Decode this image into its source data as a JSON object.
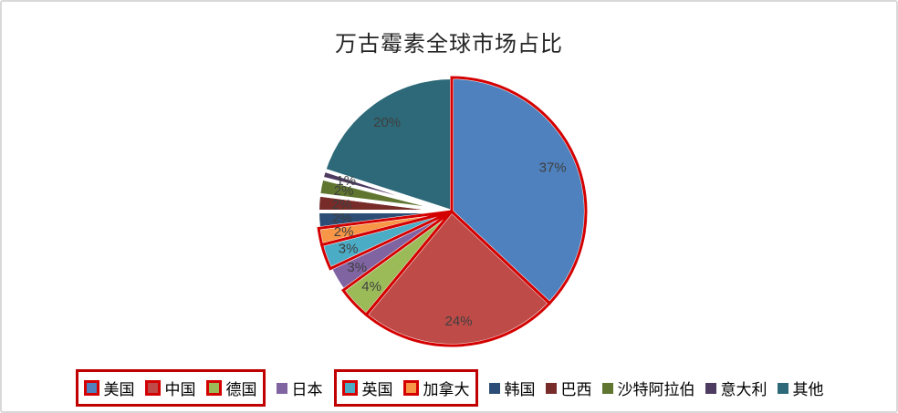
{
  "canvas": {
    "background": "#FFFFFF",
    "border_color": "#D9D9D9"
  },
  "chart_data": {
    "type": "pie",
    "title": "万古霉素全球市场占比",
    "title_color": "#262626",
    "legend_position": "bottom",
    "start_angle_deg": 0,
    "direction": "clockwise",
    "categories": [
      "美国",
      "中国",
      "德国",
      "日本",
      "英国",
      "加拿大",
      "韩国",
      "巴西",
      "沙特阿拉伯",
      "意大利",
      "其他"
    ],
    "values": [
      37,
      24,
      4,
      3,
      3,
      2,
      2,
      2,
      2,
      1,
      20
    ],
    "data_labels": [
      "37%",
      "24%",
      "4%",
      "3%",
      "3%",
      "2%",
      "2%",
      "2%",
      "2%",
      "1%",
      "20%"
    ],
    "slice_colors": [
      "#4E81BD",
      "#BE4B48",
      "#9BBB59",
      "#8064A2",
      "#4BACC6",
      "#F79646",
      "#2C4D75",
      "#772C2A",
      "#5F7530",
      "#4D3B62",
      "#2D6978"
    ],
    "slice_gap_color": "#FFFFFF",
    "label_color": "#3F3F3F",
    "highlighted_categories": [
      "美国",
      "中国",
      "德国",
      "英国",
      "加拿大"
    ],
    "highlight_border_color": "#D40000",
    "annotation_boxes": [
      {
        "around": [
          "美国",
          "中国",
          "德国"
        ],
        "color": "#C00000"
      },
      {
        "around": [
          "英国",
          "加拿大"
        ],
        "color": "#C00000"
      }
    ]
  }
}
